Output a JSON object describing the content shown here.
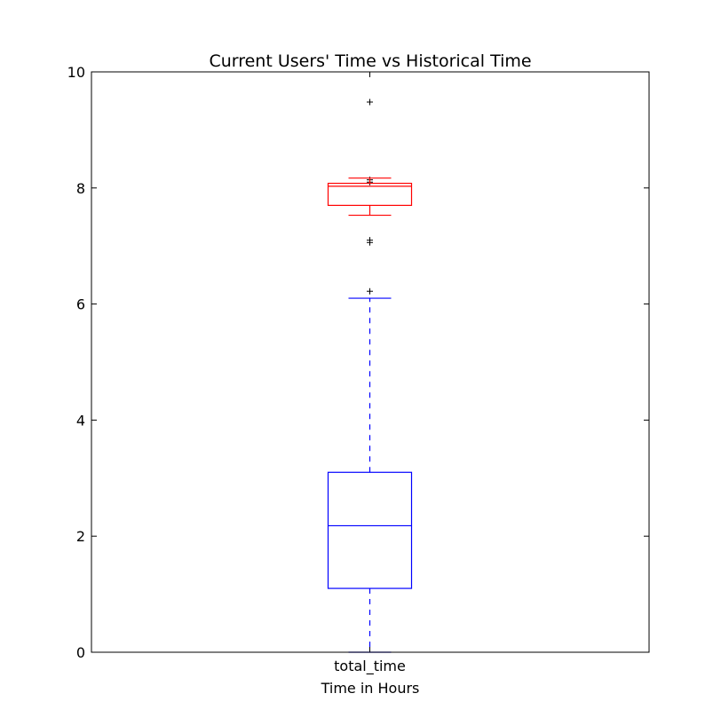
{
  "chart_data": {
    "type": "box",
    "title": "Current Users' Time vs Historical Time",
    "xlabel": "Time in Hours",
    "ylabel": "",
    "categories": [
      "total_time"
    ],
    "ylim": [
      0,
      10
    ],
    "yticks": [
      0,
      2,
      4,
      6,
      8,
      10
    ],
    "grid": false,
    "series": [
      {
        "color": "#0000ff",
        "whisker_style": "dashed",
        "whisker_low": 0.0,
        "q1": 1.1,
        "median": 2.18,
        "q3": 3.1,
        "whisker_high": 6.1,
        "outliers": [
          6.22,
          7.06,
          7.1,
          8.1,
          8.14,
          9.48
        ]
      },
      {
        "color": "#ff0000",
        "whisker_style": "solid",
        "whisker_low": 7.53,
        "q1": 7.7,
        "median": 8.03,
        "q3": 8.08,
        "whisker_high": 8.17,
        "outliers": []
      }
    ]
  }
}
